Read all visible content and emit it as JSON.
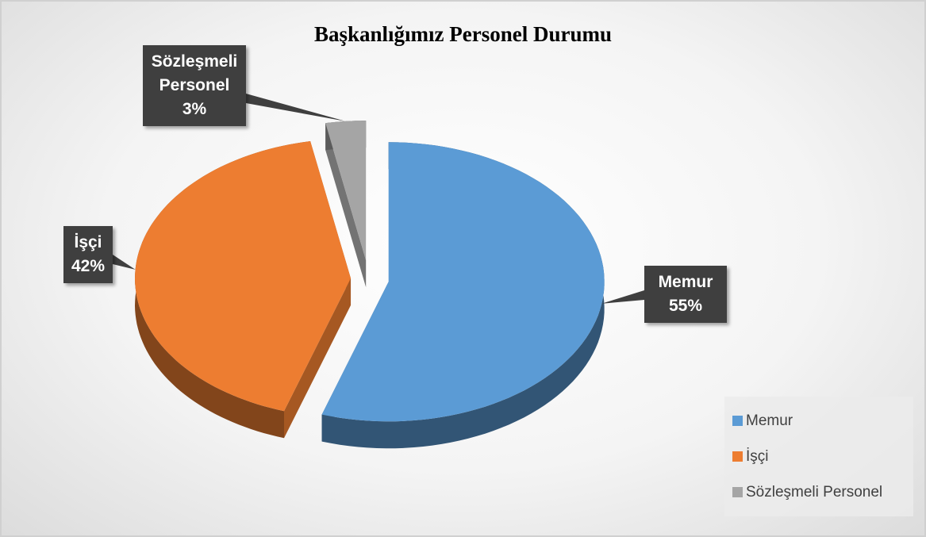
{
  "chart_data": {
    "type": "pie",
    "title": "Başkanlığımız Personel Durumu",
    "categories": [
      "Memur",
      "İşçi",
      "Sözleşmeli Personel"
    ],
    "values": [
      55,
      42,
      3
    ],
    "value_labels": [
      "55%",
      "42%",
      "3%"
    ],
    "colors": [
      "#5b9bd5",
      "#ed7d31",
      "#a5a5a5"
    ],
    "legend": "bottom-right"
  }
}
